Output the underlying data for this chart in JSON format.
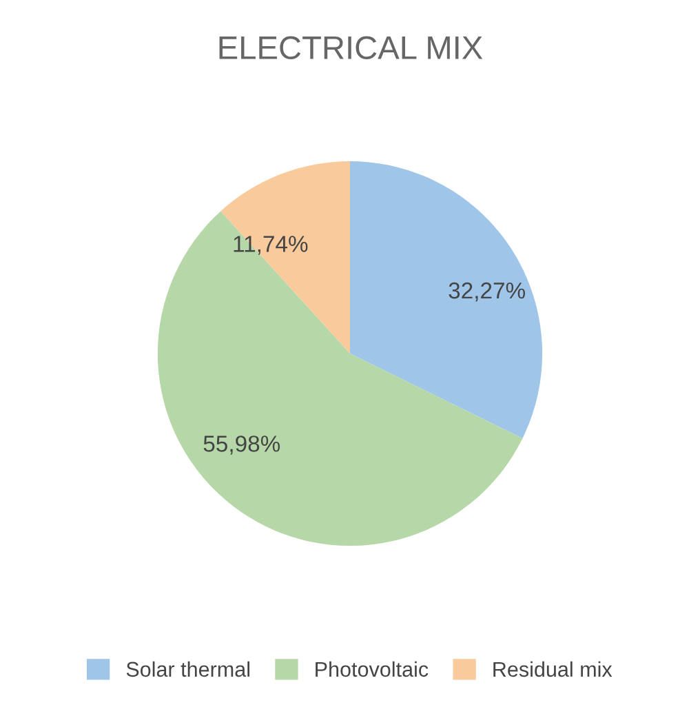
{
  "chart_data": {
    "type": "pie",
    "title": "ELECTRICAL MIX",
    "categories": [
      "Solar thermal",
      "Photovoltaic",
      "Residual mix"
    ],
    "values": [
      32.27,
      55.98,
      11.74
    ],
    "value_labels": [
      "32,27%",
      "55,98%",
      "11,74%"
    ],
    "colors": [
      "#9fc5e8",
      "#b6d7a8",
      "#f9cb9c"
    ],
    "legend": "bottom"
  }
}
